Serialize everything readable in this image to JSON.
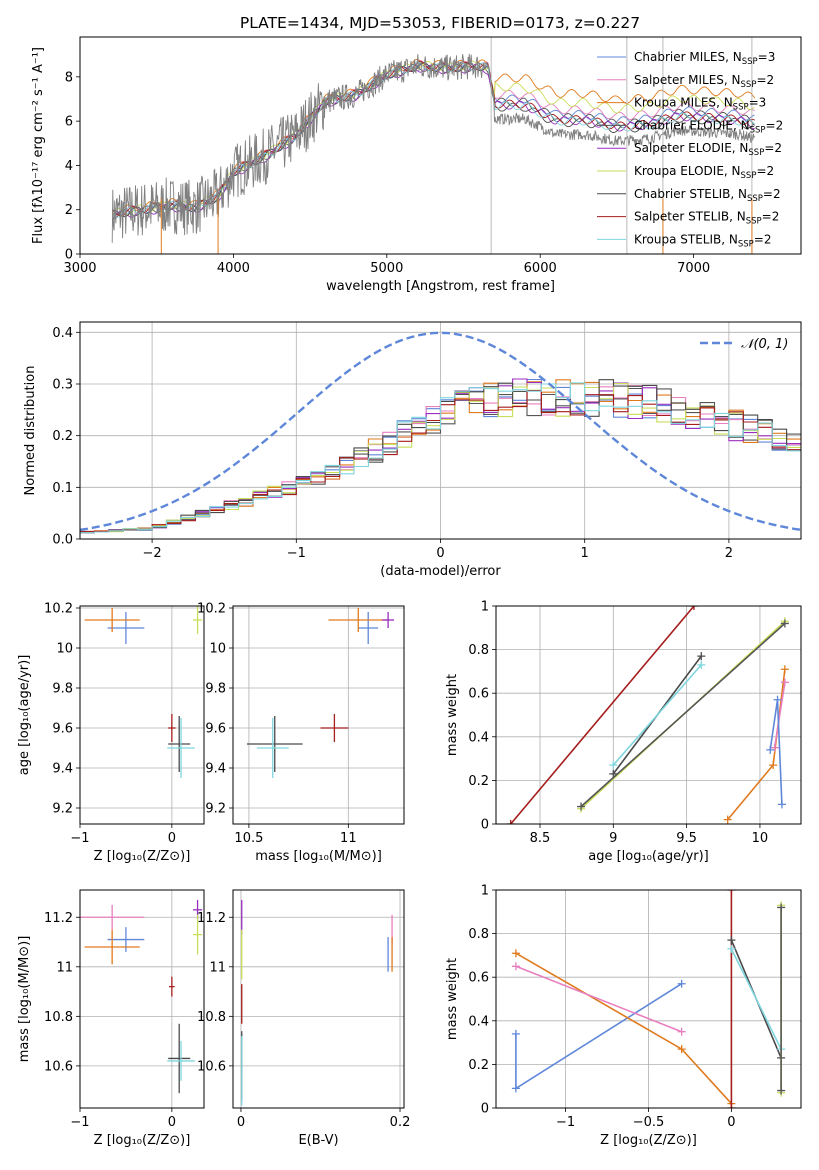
{
  "figure_title": "PLATE=1434, MJD=53053, FIBERID=0173, z=0.227",
  "models": [
    {
      "name": "Chabrier MILES",
      "nssp": "3",
      "color": "#5f87d9"
    },
    {
      "name": "Salpeter MILES",
      "nssp": "2",
      "color": "#e87fbf"
    },
    {
      "name": "Kroupa MILES",
      "nssp": "3",
      "color": "#e07a1e"
    },
    {
      "name": "Chabrier ELODIE",
      "nssp": "2",
      "color": "#555555"
    },
    {
      "name": "Salpeter ELODIE",
      "nssp": "2",
      "color": "#9a2ec0"
    },
    {
      "name": "Kroupa ELODIE",
      "nssp": "2",
      "color": "#c9de5a"
    },
    {
      "name": "Chabrier STELIB",
      "nssp": "2",
      "color": "#4a4a4a"
    },
    {
      "name": "Salpeter STELIB",
      "nssp": "2",
      "color": "#a51d1d"
    },
    {
      "name": "Kroupa STELIB",
      "nssp": "2",
      "color": "#7fd6df"
    }
  ],
  "chart_data": [
    {
      "id": "spectrum",
      "type": "line",
      "xlabel": "wavelength [Angstrom, rest frame]",
      "ylabel": "Flux [fλ10⁻¹⁷ erg cm⁻² s⁻¹ A⁻¹]",
      "xlim": [
        3000,
        7700
      ],
      "ylim": [
        0,
        9.8
      ],
      "xticks": [
        3000,
        4000,
        5000,
        6000,
        7000
      ],
      "yticks": [
        0,
        2,
        4,
        6,
        8
      ],
      "grid": false,
      "legend": "top-right",
      "observed_color": "#808080",
      "continuum": [
        [
          3210,
          1.8
        ],
        [
          3400,
          2.0
        ],
        [
          3600,
          2.2
        ],
        [
          3750,
          2.1
        ],
        [
          3900,
          2.6
        ],
        [
          4000,
          3.7
        ],
        [
          4200,
          4.4
        ],
        [
          4400,
          5.3
        ],
        [
          4600,
          6.9
        ],
        [
          4800,
          7.2
        ],
        [
          5000,
          8.1
        ],
        [
          5200,
          8.5
        ],
        [
          5400,
          8.4
        ],
        [
          5600,
          8.5
        ],
        [
          5660,
          8.4
        ],
        [
          5700,
          7.0
        ],
        [
          5900,
          7.0
        ],
        [
          6100,
          6.3
        ],
        [
          6300,
          6.3
        ],
        [
          6500,
          6.0
        ],
        [
          6700,
          6.1
        ],
        [
          6900,
          6.5
        ],
        [
          7100,
          6.4
        ],
        [
          7300,
          6.3
        ],
        [
          7400,
          6.1
        ]
      ],
      "verticals": [
        5680,
        6565,
        6800,
        7380
      ]
    },
    {
      "id": "residuals",
      "type": "step",
      "xlabel": "(data-model)/error",
      "ylabel": "Normed distribution",
      "xlim": [
        -2.5,
        2.5
      ],
      "ylim": [
        0,
        0.42
      ],
      "xticks": [
        -2,
        -1,
        0,
        1,
        2
      ],
      "yticks": [
        0.0,
        0.1,
        0.2,
        0.3,
        0.4
      ],
      "grid": true,
      "legend": "top-right",
      "gaussian_label": "𝒩(0, 1)",
      "gaussian_color": "#5f87d9",
      "bin_width": 0.1,
      "envelope": [
        [
          -2.5,
          0.012
        ],
        [
          -2.0,
          0.02
        ],
        [
          -1.5,
          0.06
        ],
        [
          -1.0,
          0.1
        ],
        [
          -0.5,
          0.16
        ],
        [
          0.0,
          0.24
        ],
        [
          0.5,
          0.27
        ],
        [
          1.0,
          0.27
        ],
        [
          1.5,
          0.26
        ],
        [
          2.0,
          0.22
        ],
        [
          2.5,
          0.18
        ]
      ]
    },
    {
      "id": "age_vs_Z",
      "type": "scatter",
      "xlabel": "Z [log₁₀(Z/Z⊙)]",
      "ylabel": "age  [log₁₀(age/yr)]",
      "xlim": [
        -1.0,
        0.35
      ],
      "ylim": [
        9.12,
        10.21
      ],
      "xticks": [
        -1,
        0
      ],
      "yticks": [
        9.2,
        9.4,
        9.6,
        9.8,
        10.0,
        10.2
      ],
      "grid": true,
      "points": [
        {
          "model": 0,
          "x": -0.5,
          "xerr": 0.2,
          "y": 10.1,
          "yerr": 0.08
        },
        {
          "model": 2,
          "x": -0.65,
          "xerr": 0.3,
          "y": 10.14,
          "yerr": 0.06
        },
        {
          "model": 5,
          "x": 0.28,
          "xerr": 0.05,
          "y": 10.14,
          "yerr": 0.07
        },
        {
          "model": 7,
          "x": 0.0,
          "xerr": 0.04,
          "y": 9.6,
          "yerr": 0.07
        },
        {
          "model": 6,
          "x": 0.08,
          "xerr": 0.12,
          "y": 9.52,
          "yerr": 0.14
        },
        {
          "model": 8,
          "x": 0.1,
          "xerr": 0.15,
          "y": 9.5,
          "yerr": 0.15
        }
      ]
    },
    {
      "id": "age_vs_mass",
      "type": "scatter",
      "xlabel": "mass [log₁₀(M/M⊙)]",
      "ylabel": "",
      "xlim": [
        10.42,
        11.28
      ],
      "ylim": [
        9.12,
        10.21
      ],
      "xticks": [
        10.5,
        11.0
      ],
      "yticks": [
        9.2,
        9.4,
        9.6,
        9.8,
        10.0,
        10.2
      ],
      "grid": true,
      "points": [
        {
          "model": 0,
          "x": 11.1,
          "xerr": 0.05,
          "y": 10.1,
          "yerr": 0.08
        },
        {
          "model": 2,
          "x": 11.05,
          "xerr": 0.15,
          "y": 10.14,
          "yerr": 0.06
        },
        {
          "model": 4,
          "x": 11.2,
          "xerr": 0.03,
          "y": 10.14,
          "yerr": 0.04
        },
        {
          "model": 7,
          "x": 10.93,
          "xerr": 0.07,
          "y": 9.6,
          "yerr": 0.07
        },
        {
          "model": 6,
          "x": 10.63,
          "xerr": 0.14,
          "y": 9.52,
          "yerr": 0.14
        },
        {
          "model": 8,
          "x": 10.62,
          "xerr": 0.08,
          "y": 9.5,
          "yerr": 0.15
        }
      ]
    },
    {
      "id": "weight_vs_age",
      "type": "line",
      "xlabel": "age  [log₁₀(age/yr)]",
      "ylabel": "mass weight",
      "xlim": [
        8.2,
        10.28
      ],
      "ylim": [
        0,
        1.0
      ],
      "xticks": [
        8.5,
        9.0,
        9.5,
        10.0
      ],
      "yticks": [
        0.0,
        0.2,
        0.4,
        0.6,
        0.8,
        1.0
      ],
      "grid": true,
      "series": [
        {
          "model": 7,
          "points": [
            [
              8.3,
              0.0
            ],
            [
              9.55,
              1.0
            ]
          ]
        },
        {
          "model": 6,
          "points": [
            [
              9.0,
              0.23
            ],
            [
              9.6,
              0.77
            ]
          ]
        },
        {
          "model": 8,
          "points": [
            [
              9.0,
              0.27
            ],
            [
              9.6,
              0.73
            ]
          ]
        },
        {
          "model": 5,
          "points": [
            [
              8.78,
              0.07
            ],
            [
              10.17,
              0.93
            ]
          ]
        },
        {
          "model": 3,
          "points": [
            [
              8.78,
              0.08
            ],
            [
              10.17,
              0.92
            ]
          ]
        },
        {
          "model": 2,
          "points": [
            [
              9.78,
              0.02
            ],
            [
              10.09,
              0.27
            ],
            [
              10.17,
              0.71
            ]
          ]
        },
        {
          "model": 1,
          "points": [
            [
              10.1,
              0.35
            ],
            [
              10.17,
              0.65
            ]
          ]
        },
        {
          "model": 0,
          "points": [
            [
              10.07,
              0.34
            ],
            [
              10.12,
              0.57
            ],
            [
              10.15,
              0.09
            ]
          ]
        }
      ]
    },
    {
      "id": "mass_vs_Z",
      "type": "scatter",
      "xlabel": "Z [log₁₀(Z/Z⊙)]",
      "ylabel": "mass [log₁₀(M/M⊙)]",
      "xlim": [
        -1.0,
        0.35
      ],
      "ylim": [
        10.43,
        11.31
      ],
      "xticks": [
        -1,
        0
      ],
      "yticks": [
        10.6,
        10.8,
        11.0,
        11.2
      ],
      "grid": true,
      "points": [
        {
          "model": 0,
          "x": -0.5,
          "xerr": 0.2,
          "y": 11.11,
          "yerr": 0.05
        },
        {
          "model": 1,
          "x": -0.65,
          "xerr": 0.35,
          "y": 11.2,
          "yerr": 0.05
        },
        {
          "model": 2,
          "x": -0.65,
          "xerr": 0.3,
          "y": 11.08,
          "yerr": 0.07
        },
        {
          "model": 4,
          "x": 0.28,
          "xerr": 0.05,
          "y": 11.23,
          "yerr": 0.04
        },
        {
          "model": 5,
          "x": 0.28,
          "xerr": 0.05,
          "y": 11.13,
          "yerr": 0.08
        },
        {
          "model": 7,
          "x": 0.0,
          "xerr": 0.03,
          "y": 10.92,
          "yerr": 0.04
        },
        {
          "model": 6,
          "x": 0.08,
          "xerr": 0.12,
          "y": 10.63,
          "yerr": 0.14
        },
        {
          "model": 8,
          "x": 0.1,
          "xerr": 0.15,
          "y": 10.62,
          "yerr": 0.08
        }
      ]
    },
    {
      "id": "mass_vs_EBV",
      "type": "scatter",
      "xlabel": "E(B-V)",
      "ylabel": "",
      "xlim": [
        -0.01,
        0.205
      ],
      "ylim": [
        10.43,
        11.31
      ],
      "xticks": [
        0.0,
        0.2
      ],
      "yticks": [
        10.6,
        10.8,
        11.0,
        11.2
      ],
      "grid": true,
      "points": [
        {
          "model": 0,
          "x": 0.185,
          "xerr": 0.0,
          "y": 11.05,
          "yerr": 0.07
        },
        {
          "model": 1,
          "x": 0.19,
          "xerr": 0.0,
          "y": 11.15,
          "yerr": 0.06
        },
        {
          "model": 2,
          "x": 0.19,
          "xerr": 0.0,
          "y": 11.05,
          "yerr": 0.07
        },
        {
          "model": 4,
          "x": 0.001,
          "xerr": 0.0,
          "y": 11.2,
          "yerr": 0.07
        },
        {
          "model": 5,
          "x": 0.001,
          "xerr": 0.0,
          "y": 11.05,
          "yerr": 0.1
        },
        {
          "model": 7,
          "x": 0.001,
          "xerr": 0.0,
          "y": 10.85,
          "yerr": 0.08
        },
        {
          "model": 6,
          "x": 0.001,
          "xerr": 0.0,
          "y": 10.6,
          "yerr": 0.14
        },
        {
          "model": 8,
          "x": 0.001,
          "xerr": 0.0,
          "y": 10.58,
          "yerr": 0.14
        }
      ]
    },
    {
      "id": "weight_vs_Z",
      "type": "line",
      "xlabel": "Z [log₁₀(Z/Z⊙)]",
      "ylabel": "mass weight",
      "xlim": [
        -1.42,
        0.42
      ],
      "ylim": [
        0,
        1.0
      ],
      "xticks": [
        -1.0,
        -0.5,
        0.0
      ],
      "yticks": [
        0.0,
        0.2,
        0.4,
        0.6,
        0.8,
        1.0
      ],
      "grid": true,
      "series": [
        {
          "model": 0,
          "points": [
            [
              -1.3,
              0.34
            ],
            [
              -1.3,
              0.09
            ],
            [
              -0.3,
              0.57
            ]
          ]
        },
        {
          "model": 2,
          "points": [
            [
              -1.3,
              0.71
            ],
            [
              -0.3,
              0.27
            ],
            [
              0.0,
              0.02
            ]
          ]
        },
        {
          "model": 1,
          "points": [
            [
              -1.3,
              0.65
            ],
            [
              -0.3,
              0.35
            ]
          ]
        },
        {
          "model": 7,
          "points": [
            [
              0.0,
              0.0
            ],
            [
              0.0,
              1.0
            ]
          ]
        },
        {
          "model": 6,
          "points": [
            [
              0.0,
              0.77
            ],
            [
              0.3,
              0.23
            ]
          ]
        },
        {
          "model": 8,
          "points": [
            [
              0.0,
              0.73
            ],
            [
              0.3,
              0.27
            ]
          ]
        },
        {
          "model": 5,
          "points": [
            [
              0.3,
              0.07
            ],
            [
              0.3,
              0.93
            ]
          ]
        },
        {
          "model": 3,
          "points": [
            [
              0.3,
              0.08
            ],
            [
              0.3,
              0.92
            ]
          ]
        }
      ]
    }
  ]
}
